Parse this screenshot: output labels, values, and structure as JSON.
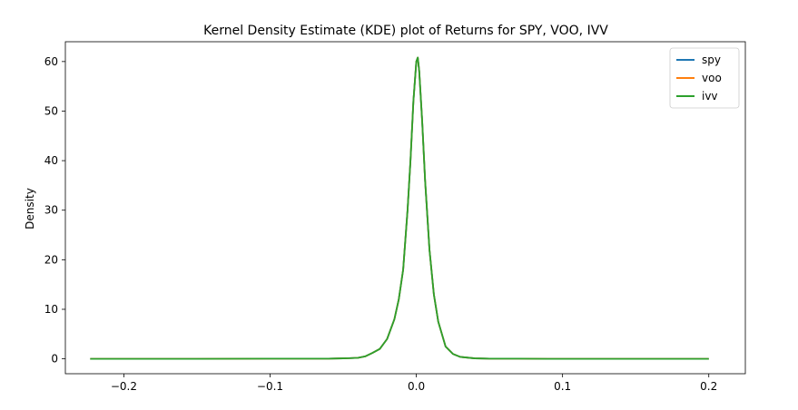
{
  "chart_data": {
    "type": "line",
    "title": "Kernel Density Estimate (KDE) plot of Returns for SPY, VOO, IVV",
    "xlabel": "",
    "ylabel": "Density",
    "xlim": [
      -0.24,
      0.225
    ],
    "ylim": [
      -3,
      64
    ],
    "xticks": [
      -0.2,
      -0.1,
      0.0,
      0.1,
      0.2
    ],
    "xtick_labels": [
      "−0.2",
      "−0.1",
      "0.0",
      "0.1",
      "0.2"
    ],
    "yticks": [
      0,
      10,
      20,
      30,
      40,
      50,
      60
    ],
    "ytick_labels": [
      "0",
      "10",
      "20",
      "30",
      "40",
      "50",
      "60"
    ],
    "grid": false,
    "legend_position": "top-right",
    "series": [
      {
        "name": "spy",
        "color": "#1f77b4",
        "x": [
          -0.223,
          -0.2,
          -0.15,
          -0.1,
          -0.08,
          -0.06,
          -0.05,
          -0.04,
          -0.035,
          -0.03,
          -0.025,
          -0.02,
          -0.015,
          -0.012,
          -0.009,
          -0.006,
          -0.004,
          -0.002,
          0.0,
          0.001,
          0.002,
          0.004,
          0.006,
          0.009,
          0.012,
          0.015,
          0.02,
          0.025,
          0.03,
          0.04,
          0.05,
          0.07,
          0.09,
          0.1,
          0.15,
          0.2
        ],
        "y": [
          0.0,
          0.0,
          0.0,
          0.05,
          0.05,
          0.05,
          0.1,
          0.2,
          0.5,
          1.2,
          2.0,
          4.0,
          8.0,
          12.0,
          18.0,
          30.0,
          40.0,
          52.0,
          60.0,
          60.8,
          58.0,
          48.0,
          36.0,
          22.0,
          13.0,
          7.5,
          2.5,
          1.0,
          0.4,
          0.1,
          0.05,
          0.05,
          0.0,
          0.0,
          0.0,
          0.0
        ]
      },
      {
        "name": "voo",
        "color": "#ff7f0e",
        "x": [
          -0.223,
          -0.2,
          -0.15,
          -0.1,
          -0.08,
          -0.06,
          -0.05,
          -0.04,
          -0.035,
          -0.03,
          -0.025,
          -0.02,
          -0.015,
          -0.012,
          -0.009,
          -0.006,
          -0.004,
          -0.002,
          0.0,
          0.001,
          0.002,
          0.004,
          0.006,
          0.009,
          0.012,
          0.015,
          0.02,
          0.025,
          0.03,
          0.04,
          0.05,
          0.07,
          0.09,
          0.1,
          0.15,
          0.2
        ],
        "y": [
          0.0,
          0.0,
          0.0,
          0.05,
          0.05,
          0.05,
          0.1,
          0.2,
          0.5,
          1.2,
          2.0,
          4.0,
          8.0,
          12.0,
          18.0,
          30.0,
          40.0,
          52.0,
          60.0,
          60.8,
          58.0,
          48.0,
          36.0,
          22.0,
          13.0,
          7.5,
          2.5,
          1.0,
          0.4,
          0.1,
          0.05,
          0.05,
          0.0,
          0.0,
          0.0,
          0.0
        ]
      },
      {
        "name": "ivv",
        "color": "#2ca02c",
        "x": [
          -0.223,
          -0.2,
          -0.15,
          -0.1,
          -0.08,
          -0.06,
          -0.05,
          -0.04,
          -0.035,
          -0.03,
          -0.025,
          -0.02,
          -0.015,
          -0.012,
          -0.009,
          -0.006,
          -0.004,
          -0.002,
          0.0,
          0.001,
          0.002,
          0.004,
          0.006,
          0.009,
          0.012,
          0.015,
          0.02,
          0.025,
          0.03,
          0.04,
          0.05,
          0.07,
          0.09,
          0.1,
          0.15,
          0.2
        ],
        "y": [
          0.0,
          0.0,
          0.0,
          0.05,
          0.05,
          0.05,
          0.1,
          0.2,
          0.5,
          1.2,
          2.0,
          4.0,
          8.0,
          12.0,
          18.0,
          30.0,
          40.0,
          52.0,
          60.0,
          60.8,
          58.0,
          48.0,
          36.0,
          22.0,
          13.0,
          7.5,
          2.5,
          1.0,
          0.4,
          0.1,
          0.05,
          0.05,
          0.0,
          0.0,
          0.0,
          0.0
        ]
      }
    ]
  }
}
